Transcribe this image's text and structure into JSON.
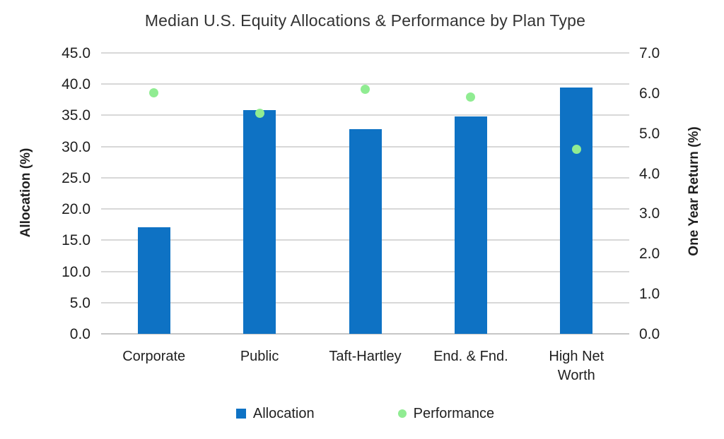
{
  "chart_data": {
    "type": "bar",
    "subtype": "combo-bar-scatter-dual-axis",
    "title": "Median U.S. Equity Allocations & Performance by Plan Type",
    "categories": [
      "Corporate",
      "Public",
      "Taft-Hartley",
      "End. & Fnd.",
      "High Net Worth"
    ],
    "series": [
      {
        "name": "Allocation",
        "type": "bar",
        "axis": "left",
        "values": [
          17.1,
          35.9,
          32.8,
          34.8,
          39.5
        ],
        "color": "#0E72C4"
      },
      {
        "name": "Performance",
        "type": "scatter",
        "axis": "right",
        "values": [
          6.0,
          5.5,
          6.1,
          5.9,
          4.6
        ],
        "color": "#90EC92"
      }
    ],
    "left_axis": {
      "label": "Allocation (%)",
      "min": 0,
      "max": 45,
      "step": 5,
      "tick_labels": [
        "0.0",
        "5.0",
        "10.0",
        "15.0",
        "20.0",
        "25.0",
        "30.0",
        "35.0",
        "40.0",
        "45.0"
      ]
    },
    "right_axis": {
      "label": "One Year Return (%)",
      "min": 0,
      "max": 7,
      "step": 1,
      "tick_labels": [
        "0.0",
        "1.0",
        "2.0",
        "3.0",
        "4.0",
        "5.0",
        "6.0",
        "7.0"
      ]
    },
    "legend": {
      "position": "bottom",
      "items": [
        {
          "label": "Allocation",
          "marker": "square",
          "color": "#0E72C4"
        },
        {
          "label": "Performance",
          "marker": "circle",
          "color": "#90EC92"
        }
      ]
    },
    "grid": "horizontal-on",
    "colors": {
      "gridline": "#D8D8D8",
      "baseline": "#C6C6C6",
      "text": "#1F1F1F",
      "bar": "#0E72C4",
      "dot": "#90EC92"
    }
  }
}
